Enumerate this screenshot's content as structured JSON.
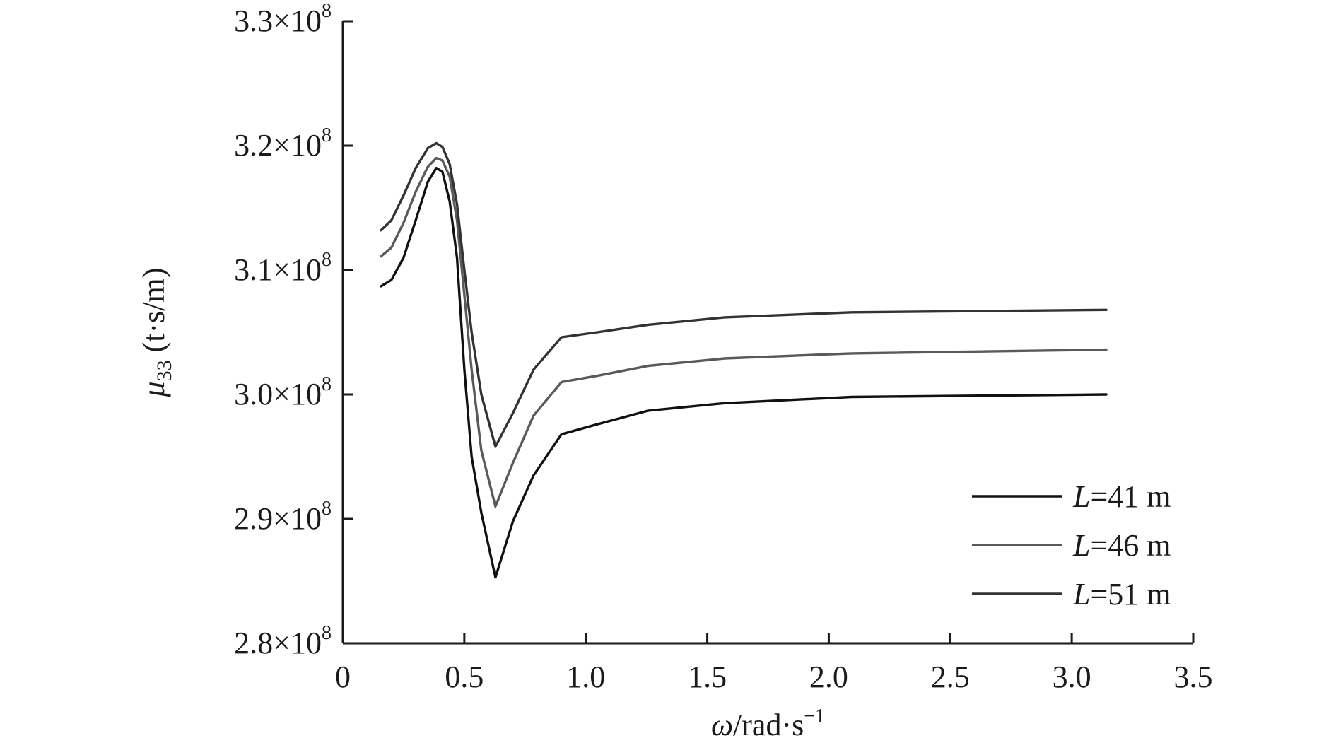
{
  "chart_data": {
    "type": "line",
    "title": "",
    "xlabel": {
      "symbol": "ω",
      "text": "/rad·s",
      "sup": "−1"
    },
    "ylabel": {
      "symbol": "μ",
      "sub": "33",
      "text": " (t·s/m)"
    },
    "xlim": [
      0,
      3.5
    ],
    "ylim": [
      2.8,
      3.3
    ],
    "y_exponent": 8,
    "x_ticks": [
      {
        "value": 0,
        "label": "0"
      },
      {
        "value": 0.5,
        "label": "0.5"
      },
      {
        "value": 1.0,
        "label": "1.0"
      },
      {
        "value": 1.5,
        "label": "1.5"
      },
      {
        "value": 2.0,
        "label": "2.0"
      },
      {
        "value": 2.5,
        "label": "2.5"
      },
      {
        "value": 3.0,
        "label": "3.0"
      },
      {
        "value": 3.5,
        "label": "3.5"
      }
    ],
    "y_ticks": [
      {
        "value": 2.8,
        "label": "2.8×10",
        "sup": "8"
      },
      {
        "value": 2.9,
        "label": "2.9×10",
        "sup": "8"
      },
      {
        "value": 3.0,
        "label": "3.0×10",
        "sup": "8"
      },
      {
        "value": 3.1,
        "label": "3.1×10",
        "sup": "8"
      },
      {
        "value": 3.2,
        "label": "3.2×10",
        "sup": "8"
      },
      {
        "value": 3.3,
        "label": "3.3×10",
        "sup": "8"
      }
    ],
    "grid": false,
    "legend_position": "bottom-right",
    "series": [
      {
        "name": "L=41 m",
        "legend": {
          "italic": "L",
          "rest": "=41 m"
        },
        "color": "#111111",
        "x": [
          0.157,
          0.2,
          0.25,
          0.3,
          0.35,
          0.385,
          0.41,
          0.44,
          0.47,
          0.5,
          0.53,
          0.57,
          0.628,
          0.7,
          0.785,
          0.9,
          1.047,
          1.257,
          1.571,
          2.094,
          3.142
        ],
        "y": [
          3.087,
          3.092,
          3.11,
          3.14,
          3.171,
          3.182,
          3.179,
          3.155,
          3.11,
          3.02,
          2.95,
          2.905,
          2.853,
          2.898,
          2.935,
          2.968,
          2.976,
          2.987,
          2.993,
          2.998,
          3.0
        ]
      },
      {
        "name": "L=46 m",
        "legend": {
          "italic": "L",
          "rest": "=46 m"
        },
        "color": "#5a5a5a",
        "x": [
          0.157,
          0.2,
          0.25,
          0.3,
          0.35,
          0.385,
          0.41,
          0.44,
          0.47,
          0.5,
          0.53,
          0.57,
          0.628,
          0.7,
          0.785,
          0.9,
          1.047,
          1.257,
          1.571,
          2.094,
          3.142
        ],
        "y": [
          3.111,
          3.118,
          3.138,
          3.163,
          3.183,
          3.19,
          3.188,
          3.175,
          3.14,
          3.08,
          3.02,
          2.955,
          2.91,
          2.945,
          2.983,
          3.01,
          3.015,
          3.023,
          3.029,
          3.033,
          3.036
        ]
      },
      {
        "name": "L=51 m",
        "legend": {
          "italic": "L",
          "rest": "=51 m"
        },
        "color": "#333333",
        "x": [
          0.157,
          0.2,
          0.25,
          0.3,
          0.35,
          0.385,
          0.41,
          0.44,
          0.47,
          0.5,
          0.53,
          0.57,
          0.628,
          0.7,
          0.785,
          0.9,
          1.047,
          1.257,
          1.571,
          2.094,
          3.142
        ],
        "y": [
          3.132,
          3.14,
          3.16,
          3.182,
          3.198,
          3.202,
          3.199,
          3.185,
          3.153,
          3.1,
          3.05,
          3.0,
          2.958,
          2.985,
          3.02,
          3.046,
          3.05,
          3.056,
          3.062,
          3.066,
          3.068
        ]
      }
    ]
  }
}
